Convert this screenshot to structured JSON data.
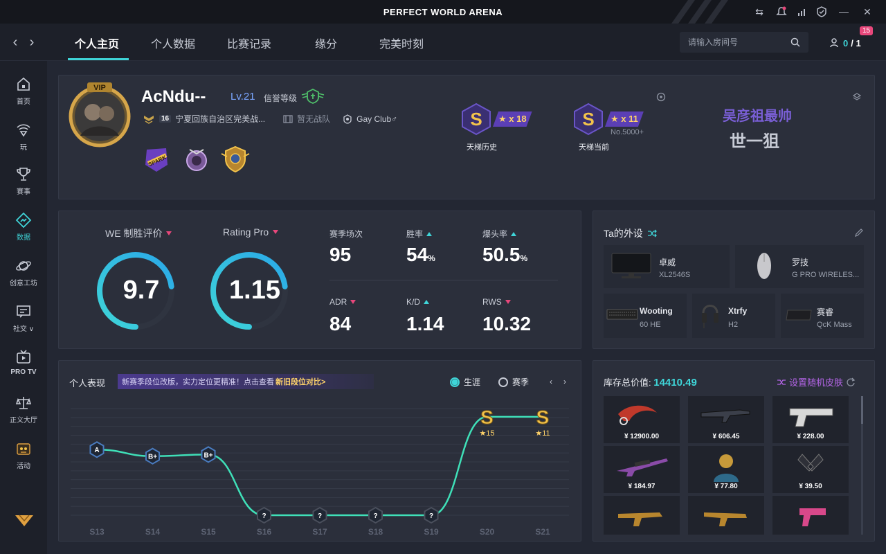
{
  "app": {
    "title": "PERFECT WORLD ARENA"
  },
  "nav": {
    "tabs": [
      {
        "label": "个人主页",
        "active": true
      },
      {
        "label": "个人数据"
      },
      {
        "label": "比赛记录"
      },
      {
        "label": "缘分"
      },
      {
        "label": "完美时刻"
      }
    ],
    "search_placeholder": "请输入房间号",
    "friends_online": "0",
    "friends_total": "/ 1",
    "notification_count": "15"
  },
  "sidebar": {
    "items": [
      {
        "label": "首页",
        "icon": "home-icon"
      },
      {
        "label": "玩",
        "icon": "play-icon"
      },
      {
        "label": "赛事",
        "icon": "trophy-icon"
      },
      {
        "label": "数据",
        "icon": "data-icon",
        "active": true
      },
      {
        "label": "创意工坊",
        "icon": "planet-icon"
      },
      {
        "label": "社交 ∨",
        "icon": "social-icon"
      },
      {
        "label": "PRO TV",
        "icon": "tv-icon"
      },
      {
        "label": "正义大厅",
        "icon": "scale-icon"
      },
      {
        "label": "活动",
        "icon": "event-icon"
      }
    ]
  },
  "profile": {
    "username": "AcNdu--",
    "level": "Lv.21",
    "credit_label": "信誉等级",
    "rank_number": "16",
    "region": "宁夏回族自治区完美战...",
    "team": "暂无战队",
    "club": "Gay Club♂",
    "ladder_history": {
      "stars": "★ x 18",
      "label": "天梯历史",
      "grade": "S"
    },
    "ladder_current": {
      "stars": "★ x 11",
      "label": "天梯当前",
      "grade": "S",
      "rank": "No.5000+"
    },
    "signature_line1": "吴彦祖最帅",
    "signature_line2": "世一狙"
  },
  "stats": {
    "we_label": "WE 制胜评价",
    "we_value": "9.7",
    "we_fraction": 0.73,
    "rating_label": "Rating Pro",
    "rating_value": "1.15",
    "rating_fraction": 0.73,
    "season_matches_label": "赛季场次",
    "season_matches": "95",
    "win_rate_label": "胜率",
    "win_rate": "54",
    "win_rate_unit": "%",
    "headshot_label": "爆头率",
    "headshot": "50.5",
    "headshot_unit": "%",
    "adr_label": "ADR",
    "adr": "84",
    "kd_label": "K/D",
    "kd": "1.14",
    "rws_label": "RWS",
    "rws": "10.32"
  },
  "peripherals": {
    "title": "Ta的外设",
    "items": [
      {
        "brand": "卓威",
        "model": "XL2546S",
        "icon": "monitor-icon"
      },
      {
        "brand": "罗技",
        "model": "G PRO WIRELES...",
        "icon": "mouse-icon"
      },
      {
        "brand": "Wooting",
        "model": "60 HE",
        "icon": "keyboard-icon"
      },
      {
        "brand": "Xtrfy",
        "model": "H2",
        "icon": "headset-icon"
      },
      {
        "brand": "赛睿",
        "model": "QcK Mass",
        "icon": "mousepad-icon"
      }
    ]
  },
  "performance": {
    "title": "个人表现",
    "notice_text": "新赛季段位改版，实力定位更精准！点击查看",
    "notice_link": "新旧段位对比>",
    "radio_career": "生涯",
    "radio_season": "赛季",
    "prev": "‹",
    "next": "›"
  },
  "chart_data": {
    "type": "line",
    "x": [
      "S13",
      "S14",
      "S15",
      "S16",
      "S17",
      "S18",
      "S19",
      "S20",
      "S21"
    ],
    "grades": [
      "A",
      "B+",
      "B+",
      "?",
      "?",
      "?",
      "?",
      "S",
      "S"
    ],
    "grade_level": [
      4,
      3.6,
      3.7,
      0,
      0,
      0,
      0,
      6,
      6
    ],
    "star_labels": [
      "",
      "",
      "",
      "",
      "",
      "",
      "",
      "★15",
      "★11"
    ],
    "ylim": [
      0,
      6.5
    ],
    "grid": true
  },
  "inventory": {
    "total_label": "库存总价值:",
    "total_value": "14410.49",
    "random_skin": "设置随机皮肤",
    "items": [
      {
        "price": "¥ 12900.00",
        "icon": "karambit-icon",
        "color": "#c0392b"
      },
      {
        "price": "¥ 606.45",
        "icon": "rifle-icon",
        "color": "#3b3f4a"
      },
      {
        "price": "¥ 228.00",
        "icon": "deagle-icon",
        "color": "#d8d8d8"
      },
      {
        "price": "¥ 184.97",
        "icon": "sniper-icon",
        "color": "#8a4ba8"
      },
      {
        "price": "¥ 77.80",
        "icon": "agent-icon",
        "color": "#c79a3a"
      },
      {
        "price": "¥ 39.50",
        "icon": "dualies-icon",
        "color": "#2e3038"
      },
      {
        "price": "",
        "icon": "smg-icon",
        "color": "#b8862e"
      },
      {
        "price": "",
        "icon": "smg2-icon",
        "color": "#b8862e"
      },
      {
        "price": "",
        "icon": "pistol-icon",
        "color": "#d8488a"
      }
    ]
  }
}
